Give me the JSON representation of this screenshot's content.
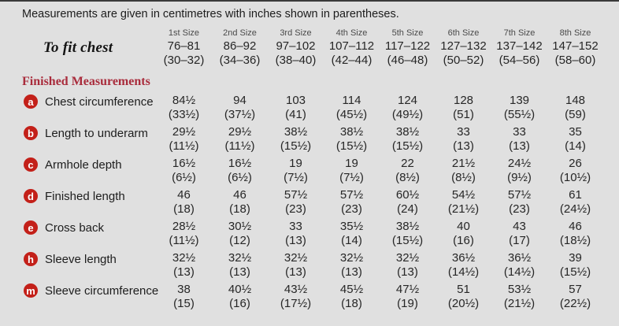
{
  "intro": "Measurements are given in centimetres with inches shown in parentheses.",
  "size_headers": [
    "1st Size",
    "2nd Size",
    "3rd Size",
    "4th Size",
    "5th Size",
    "6th Size",
    "7th Size",
    "8th Size"
  ],
  "to_fit_chest": {
    "label": "To fit chest",
    "cm": [
      "76–81",
      "86–92",
      "97–102",
      "107–112",
      "117–122",
      "127–132",
      "137–142",
      "147–152"
    ],
    "in": [
      "(30–32)",
      "(34–36)",
      "(38–40)",
      "(42–44)",
      "(46–48)",
      "(50–52)",
      "(54–56)",
      "(58–60)"
    ]
  },
  "section_title": "Finished Measurements",
  "rows": [
    {
      "badge": "a",
      "label": "Chest circumference",
      "cm": [
        "84½",
        "94",
        "103",
        "114",
        "124",
        "128",
        "139",
        "148"
      ],
      "in": [
        "(33½)",
        "(37½)",
        "(41)",
        "(45½)",
        "(49½)",
        "(51)",
        "(55½)",
        "(59)"
      ]
    },
    {
      "badge": "b",
      "label": "Length to underarm",
      "cm": [
        "29½",
        "29½",
        "38½",
        "38½",
        "38½",
        "33",
        "33",
        "35"
      ],
      "in": [
        "(11½)",
        "(11½)",
        "(15½)",
        "(15½)",
        "(15½)",
        "(13)",
        "(13)",
        "(14)"
      ]
    },
    {
      "badge": "c",
      "label": "Armhole depth",
      "cm": [
        "16½",
        "16½",
        "19",
        "19",
        "22",
        "21½",
        "24½",
        "26"
      ],
      "in": [
        "(6½)",
        "(6½)",
        "(7½)",
        "(7½)",
        "(8½)",
        "(8½)",
        "(9½)",
        "(10½)"
      ]
    },
    {
      "badge": "d",
      "label": "Finished length",
      "cm": [
        "46",
        "46",
        "57½",
        "57½",
        "60½",
        "54½",
        "57½",
        "61"
      ],
      "in": [
        "(18)",
        "(18)",
        "(23)",
        "(23)",
        "(24)",
        "(21½)",
        "(23)",
        "(24½)"
      ]
    },
    {
      "badge": "e",
      "label": "Cross back",
      "cm": [
        "28½",
        "30½",
        "33",
        "35½",
        "38½",
        "40",
        "43",
        "46"
      ],
      "in": [
        "(11½)",
        "(12)",
        "(13)",
        "(14)",
        "(15½)",
        "(16)",
        "(17)",
        "(18½)"
      ]
    },
    {
      "badge": "h",
      "label": "Sleeve length",
      "cm": [
        "32½",
        "32½",
        "32½",
        "32½",
        "32½",
        "36½",
        "36½",
        "39"
      ],
      "in": [
        "(13)",
        "(13)",
        "(13)",
        "(13)",
        "(13)",
        "(14½)",
        "(14½)",
        "(15½)"
      ]
    },
    {
      "badge": "m",
      "label": "Sleeve circumference",
      "cm": [
        "38",
        "40½",
        "43½",
        "45½",
        "47½",
        "51",
        "53½",
        "57"
      ],
      "in": [
        "(15)",
        "(16)",
        "(17½)",
        "(18)",
        "(19)",
        "(20½)",
        "(21½)",
        "(22½)"
      ]
    }
  ],
  "colors": {
    "background": "#e0e0e0",
    "badge": "#c32019",
    "section": "#a92c3c"
  }
}
